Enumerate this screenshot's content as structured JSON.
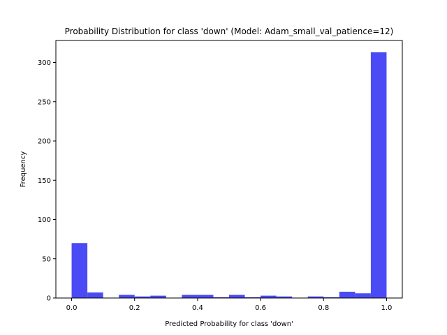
{
  "chart_data": {
    "type": "bar",
    "title": "Probability Distribution for class 'down' (Model: Adam_small_val_patience=12)",
    "xlabel": "Predicted Probability for class 'down'",
    "ylabel": "Frequency",
    "bin_edges": [
      0.0,
      0.05,
      0.1,
      0.15,
      0.2,
      0.25,
      0.3,
      0.35,
      0.4,
      0.45,
      0.5,
      0.55,
      0.6,
      0.65,
      0.7,
      0.75,
      0.8,
      0.85,
      0.9,
      0.95,
      1.0
    ],
    "values": [
      70,
      7,
      0,
      4,
      2,
      3,
      0,
      4,
      4,
      1,
      4,
      1,
      3,
      2,
      0,
      2,
      1,
      8,
      6,
      313
    ],
    "xlim": [
      -0.05,
      1.05
    ],
    "ylim": [
      0,
      328
    ],
    "xticks": [
      0.0,
      0.2,
      0.4,
      0.6,
      0.8,
      1.0
    ],
    "xtick_labels": [
      "0.0",
      "0.2",
      "0.4",
      "0.6",
      "0.8",
      "1.0"
    ],
    "yticks": [
      0,
      50,
      100,
      150,
      200,
      250,
      300
    ],
    "ytick_labels": [
      "0",
      "50",
      "100",
      "150",
      "200",
      "250",
      "300"
    ],
    "bar_color": "#4b4bf5",
    "grid": false,
    "legend": "none"
  }
}
